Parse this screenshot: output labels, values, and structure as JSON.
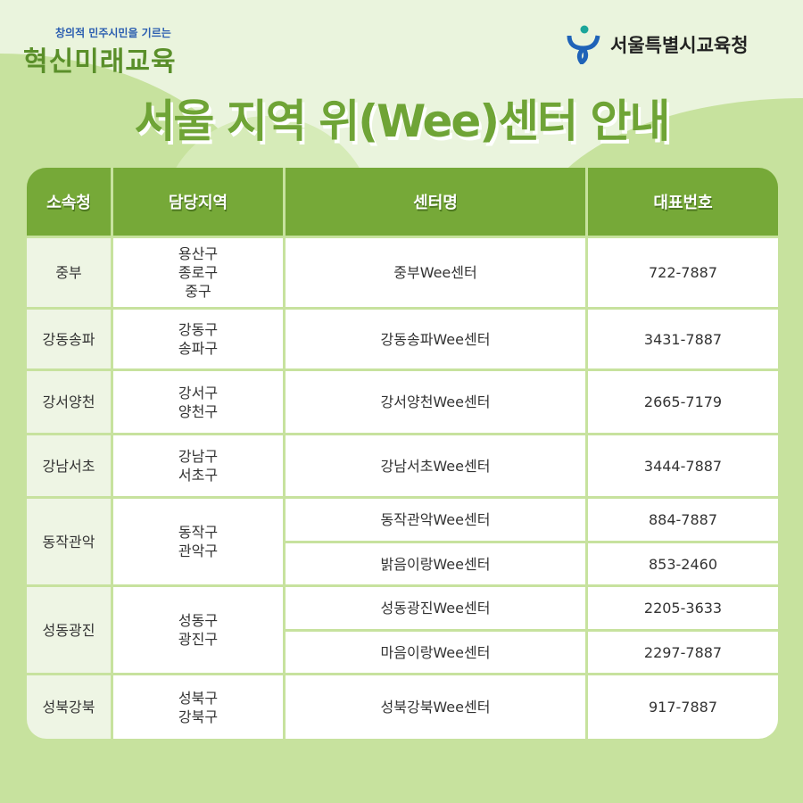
{
  "slogan": {
    "small": "창의적 민주시민을 기르는",
    "big": "혁신미래교육"
  },
  "org": {
    "name": "서울특별시교육청",
    "logo": "seoul-education-office-logo"
  },
  "title": "서울 지역 위(Wee)센터 안내",
  "colors": {
    "header": "#76a938",
    "background": "#c7e29e",
    "title": "#6fa436"
  },
  "table": {
    "headers": [
      "소속청",
      "담당지역",
      "센터명",
      "대표번호"
    ],
    "rows": [
      {
        "office": "중부",
        "regions": [
          "용산구",
          "종로구",
          "중구"
        ],
        "centers": [
          {
            "name": "중부Wee센터",
            "phone": "722-7887"
          }
        ]
      },
      {
        "office": "강동송파",
        "regions": [
          "강동구",
          "송파구"
        ],
        "centers": [
          {
            "name": "강동송파Wee센터",
            "phone": "3431-7887"
          }
        ]
      },
      {
        "office": "강서양천",
        "regions": [
          "강서구",
          "양천구"
        ],
        "centers": [
          {
            "name": "강서양천Wee센터",
            "phone": "2665-7179"
          }
        ]
      },
      {
        "office": "강남서초",
        "regions": [
          "강남구",
          "서초구"
        ],
        "centers": [
          {
            "name": "강남서초Wee센터",
            "phone": "3444-7887"
          }
        ]
      },
      {
        "office": "동작관악",
        "regions": [
          "동작구",
          "관악구"
        ],
        "centers": [
          {
            "name": "동작관악Wee센터",
            "phone": "884-7887"
          },
          {
            "name": "밝음이랑Wee센터",
            "phone": "853-2460"
          }
        ]
      },
      {
        "office": "성동광진",
        "regions": [
          "성동구",
          "광진구"
        ],
        "centers": [
          {
            "name": "성동광진Wee센터",
            "phone": "2205-3633"
          },
          {
            "name": "마음이랑Wee센터",
            "phone": "2297-7887"
          }
        ]
      },
      {
        "office": "성북강북",
        "regions": [
          "성북구",
          "강북구"
        ],
        "centers": [
          {
            "name": "성북강북Wee센터",
            "phone": "917-7887"
          }
        ]
      }
    ]
  }
}
